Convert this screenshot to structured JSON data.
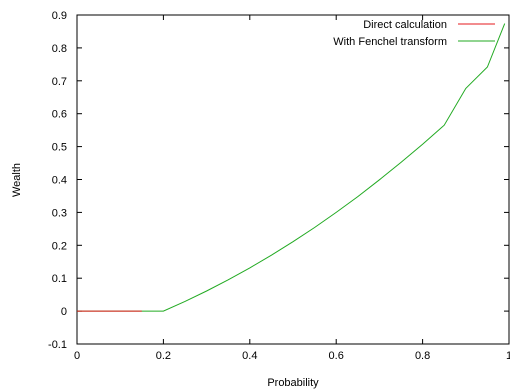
{
  "chart_data": {
    "type": "line",
    "xlabel": "Probability",
    "ylabel": "Wealth",
    "xlim": [
      0,
      1
    ],
    "ylim": [
      -0.1,
      0.9
    ],
    "x_ticks": [
      0,
      0.2,
      0.4,
      0.6,
      0.8,
      1
    ],
    "x_tick_labels": [
      "0",
      "0.2",
      "0.4",
      "0.6",
      "0.8",
      "1"
    ],
    "y_ticks": [
      -0.1,
      0,
      0.1,
      0.2,
      0.3,
      0.4,
      0.5,
      0.6,
      0.7,
      0.8,
      0.9
    ],
    "y_tick_labels": [
      "-0.1",
      "0",
      "0.1",
      "0.2",
      "0.3",
      "0.4",
      "0.5",
      "0.6",
      "0.7",
      "0.8",
      "0.9"
    ],
    "grid": false,
    "legend_position": "top-right",
    "series": [
      {
        "name": "Direct calculation",
        "color": "#e41a1c",
        "x": [
          0,
          0.05,
          0.1,
          0.15
        ],
        "y": [
          0,
          0,
          0,
          0
        ]
      },
      {
        "name": "With Fenchel transform",
        "color": "#22aa22",
        "x": [
          0,
          0.05,
          0.1,
          0.15,
          0.2,
          0.25,
          0.3,
          0.35,
          0.4,
          0.45,
          0.5,
          0.55,
          0.6,
          0.65,
          0.7,
          0.75,
          0.8,
          0.85,
          0.9,
          0.95,
          0.99
        ],
        "y": [
          0,
          0,
          0,
          0,
          0,
          0.0294,
          0.0611,
          0.0951,
          0.1314,
          0.17,
          0.211,
          0.254,
          0.3,
          0.348,
          0.399,
          0.452,
          0.507,
          0.565,
          0.677,
          0.742,
          0.874
        ]
      }
    ]
  }
}
